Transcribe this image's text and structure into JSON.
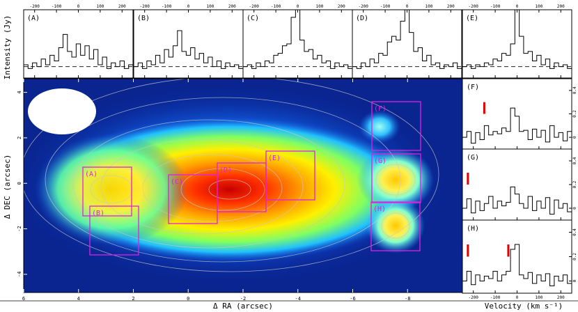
{
  "chart_data": {
    "type": "line",
    "map": {
      "xlabel": "Δ RA (arcsec)",
      "ylabel": "Δ DEC (arcsec)",
      "xticks": [
        "6",
        "4",
        "2",
        "0",
        "-2",
        "-4",
        "-6",
        "-8"
      ],
      "yticks": [
        "4",
        "2",
        "0",
        "-2",
        "-4"
      ],
      "xlim": [
        6.0,
        -10.0
      ],
      "ylim": [
        -4.8,
        4.6
      ],
      "regions": [
        "(A)",
        "(B)",
        "(C)",
        "(D)",
        "(E)",
        "(F)",
        "(G)",
        "(H)"
      ]
    },
    "top_spectra": {
      "ylabel": "Intensity (Jy)",
      "xticks": [
        "-200",
        "-100",
        "0",
        "100",
        "200"
      ],
      "xlim": [
        -250,
        250
      ],
      "panels": [
        {
          "label": "(A)",
          "x": [
            -250,
            -230,
            -210,
            -190,
            -170,
            -150,
            -130,
            -110,
            -90,
            -70,
            -50,
            -30,
            -10,
            10,
            30,
            50,
            70,
            90,
            110,
            130,
            150,
            170,
            190,
            210,
            230,
            250
          ],
          "y": [
            0.05,
            -0.05,
            0.1,
            0.0,
            0.2,
            0.05,
            0.3,
            0.15,
            0.5,
            0.85,
            0.4,
            0.25,
            0.6,
            0.3,
            0.55,
            0.2,
            0.45,
            0.05,
            0.25,
            -0.05,
            0.1,
            0.0,
            0.15,
            -0.05,
            0.05,
            0.0
          ]
        },
        {
          "label": "(B)",
          "x": [
            -250,
            -230,
            -210,
            -190,
            -170,
            -150,
            -130,
            -110,
            -90,
            -70,
            -50,
            -30,
            -10,
            10,
            30,
            50,
            70,
            90,
            110,
            130,
            150,
            170,
            190,
            210,
            230,
            250
          ],
          "y": [
            0.0,
            0.1,
            -0.05,
            0.15,
            0.05,
            0.3,
            0.1,
            0.45,
            0.25,
            0.55,
            0.95,
            0.4,
            0.3,
            0.5,
            0.2,
            0.35,
            0.1,
            0.25,
            0.0,
            0.15,
            -0.05,
            0.1,
            0.0,
            0.05,
            -0.05,
            0.0
          ]
        },
        {
          "label": "(C)",
          "x": [
            -250,
            -230,
            -210,
            -190,
            -170,
            -150,
            -130,
            -110,
            -90,
            -70,
            -50,
            -30,
            -10,
            10,
            30,
            50,
            70,
            90,
            110,
            130,
            150,
            170,
            190,
            210,
            230,
            250
          ],
          "y": [
            0.0,
            0.05,
            -0.05,
            0.1,
            0.0,
            0.15,
            0.1,
            0.3,
            0.35,
            0.55,
            0.6,
            1.3,
            1.5,
            0.7,
            0.4,
            0.45,
            0.2,
            0.3,
            0.1,
            0.15,
            -0.05,
            0.1,
            0.0,
            0.05,
            -0.05,
            0.0
          ]
        },
        {
          "label": "(D)",
          "x": [
            -250,
            -230,
            -210,
            -190,
            -170,
            -150,
            -130,
            -110,
            -90,
            -70,
            -50,
            -30,
            -10,
            10,
            30,
            50,
            70,
            90,
            110,
            130,
            150,
            170,
            190,
            210,
            230,
            250
          ],
          "y": [
            0.0,
            -0.05,
            0.1,
            0.0,
            0.2,
            0.1,
            0.35,
            0.3,
            0.65,
            0.8,
            0.7,
            1.2,
            1.5,
            0.9,
            0.4,
            0.5,
            0.15,
            0.3,
            0.05,
            0.1,
            -0.05,
            0.05,
            0.0,
            0.1,
            -0.05,
            0.0
          ]
        },
        {
          "label": "(E)",
          "x": [
            -250,
            -230,
            -210,
            -190,
            -170,
            -150,
            -130,
            -110,
            -90,
            -70,
            -50,
            -30,
            -10,
            10,
            30,
            50,
            70,
            90,
            110,
            130,
            150,
            170,
            190,
            210,
            230,
            250
          ],
          "y": [
            0.0,
            0.05,
            -0.05,
            0.05,
            0.0,
            0.1,
            0.05,
            0.2,
            0.15,
            0.35,
            0.3,
            0.6,
            1.5,
            0.8,
            0.35,
            0.4,
            0.15,
            0.3,
            0.05,
            0.2,
            -0.05,
            0.1,
            0.0,
            0.05,
            -0.05,
            0.0
          ]
        }
      ]
    },
    "side_spectra": {
      "xlabel": "Velocity (km s⁻¹)",
      "xticks": [
        "-200",
        "-100",
        "0",
        "100",
        "200"
      ],
      "yticks": [
        "0.4",
        "0.2",
        "0"
      ],
      "xlim": [
        -250,
        250
      ],
      "ylim": [
        -0.1,
        0.5
      ],
      "panels": [
        {
          "label": "(F)",
          "x": [
            -250,
            -230,
            -210,
            -190,
            -170,
            -150,
            -130,
            -110,
            -90,
            -70,
            -50,
            -30,
            -10,
            10,
            30,
            50,
            70,
            90,
            110,
            130,
            150,
            170,
            190,
            210,
            230,
            250
          ],
          "y": [
            0.0,
            0.05,
            -0.05,
            0.04,
            -0.02,
            0.1,
            0.02,
            0.05,
            0.03,
            0.08,
            0.05,
            0.25,
            0.18,
            0.05,
            0.06,
            -0.02,
            0.07,
            0.0,
            0.06,
            -0.04,
            0.1,
            0.0,
            0.04,
            -0.03,
            0.05,
            0.0
          ],
          "marker_x": [
            -150
          ]
        },
        {
          "label": "(G)",
          "x": [
            -250,
            -230,
            -210,
            -190,
            -170,
            -150,
            -130,
            -110,
            -90,
            -70,
            -50,
            -30,
            -10,
            10,
            30,
            50,
            70,
            90,
            110,
            130,
            150,
            170,
            190,
            210,
            230,
            250
          ],
          "y": [
            0.0,
            0.08,
            -0.04,
            0.06,
            -0.02,
            0.04,
            0.1,
            0.0,
            0.06,
            0.02,
            0.05,
            0.18,
            0.12,
            0.04,
            0.0,
            0.1,
            -0.02,
            0.06,
            0.0,
            0.09,
            -0.05,
            0.07,
            0.0,
            0.04,
            -0.03,
            0.0
          ],
          "marker_x": [
            -225
          ]
        },
        {
          "label": "(H)",
          "x": [
            -250,
            -230,
            -210,
            -190,
            -170,
            -150,
            -130,
            -110,
            -90,
            -70,
            -50,
            -30,
            -10,
            10,
            30,
            50,
            70,
            90,
            110,
            130,
            150,
            170,
            190,
            210,
            230,
            250
          ],
          "y": [
            0.0,
            0.08,
            -0.03,
            0.05,
            0.0,
            0.04,
            0.02,
            0.08,
            0.0,
            0.05,
            0.08,
            0.26,
            0.3,
            0.05,
            0.02,
            0.07,
            -0.02,
            0.05,
            0.0,
            0.06,
            -0.04,
            0.04,
            0.0,
            0.05,
            -0.02,
            0.0
          ],
          "marker_x": [
            -225,
            -40
          ]
        }
      ]
    }
  }
}
